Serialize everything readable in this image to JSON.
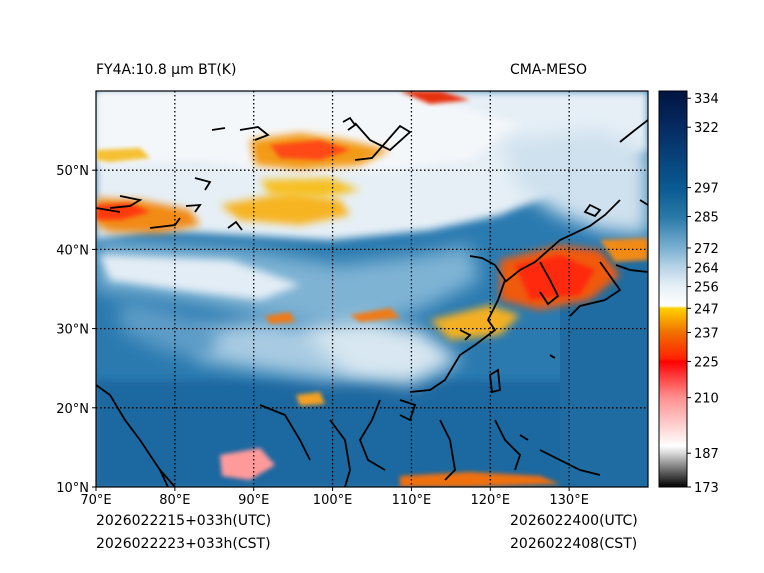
{
  "header": {
    "left_title": "FY4A:10.8 μm BT(K)",
    "right_title": "CMA-MESO"
  },
  "footer": {
    "init_utc": "2026022215+033h(UTC)",
    "init_cst": "2026022223+033h(CST)",
    "valid_utc": "2026022400(UTC)",
    "valid_cst": "2026022408(CST)"
  },
  "map": {
    "lon_range": [
      70,
      140
    ],
    "lat_range": [
      10,
      60
    ],
    "lon_ticks": [
      {
        "value": 70,
        "label": "70°E"
      },
      {
        "value": 80,
        "label": "80°E"
      },
      {
        "value": 90,
        "label": "90°E"
      },
      {
        "value": 100,
        "label": "100°E"
      },
      {
        "value": 110,
        "label": "110°E"
      },
      {
        "value": 120,
        "label": "120°E"
      },
      {
        "value": 130,
        "label": "130°E"
      }
    ],
    "lat_ticks": [
      {
        "value": 10,
        "label": "10°N"
      },
      {
        "value": 20,
        "label": "20°N"
      },
      {
        "value": 30,
        "label": "30°N"
      },
      {
        "value": 40,
        "label": "40°N"
      },
      {
        "value": 50,
        "label": "50°N"
      }
    ],
    "gridlines": "dotted",
    "variable": "brightness temperature"
  },
  "colorbar": {
    "min": 173,
    "max": 337,
    "ticks": [
      {
        "value": 334,
        "label": "334"
      },
      {
        "value": 322,
        "label": "322"
      },
      {
        "value": 297,
        "label": "297"
      },
      {
        "value": 285,
        "label": "285"
      },
      {
        "value": 272,
        "label": "272"
      },
      {
        "value": 264,
        "label": "264"
      },
      {
        "value": 256,
        "label": "256"
      },
      {
        "value": 247,
        "label": "247"
      },
      {
        "value": 237,
        "label": "237"
      },
      {
        "value": 225,
        "label": "225"
      },
      {
        "value": 210,
        "label": "210"
      },
      {
        "value": 187,
        "label": "187"
      },
      {
        "value": 173,
        "label": "173"
      }
    ],
    "stops": [
      {
        "value": 173,
        "color": "#000000"
      },
      {
        "value": 187,
        "color": "#d8d8d8"
      },
      {
        "value": 190,
        "color": "#ffffff"
      },
      {
        "value": 210,
        "color": "#ff9090"
      },
      {
        "value": 225,
        "color": "#ff0000"
      },
      {
        "value": 226,
        "color": "#ff2000"
      },
      {
        "value": 237,
        "color": "#f07000"
      },
      {
        "value": 247,
        "color": "#ffd000"
      },
      {
        "value": 248,
        "color": "#ffffff"
      },
      {
        "value": 256,
        "color": "#e6f0f6"
      },
      {
        "value": 264,
        "color": "#b8d4e6"
      },
      {
        "value": 272,
        "color": "#7ab0d0"
      },
      {
        "value": 285,
        "color": "#2878a8"
      },
      {
        "value": 297,
        "color": "#0a5a92"
      },
      {
        "value": 322,
        "color": "#062a62"
      },
      {
        "value": 337,
        "color": "#001440"
      }
    ]
  },
  "colors": {
    "ocean": "#1d6aa0",
    "warm_cloud": "#f39014",
    "cold_cloud": "#ff3010",
    "clear_land": "#dde9f2",
    "coast": "#000000"
  }
}
